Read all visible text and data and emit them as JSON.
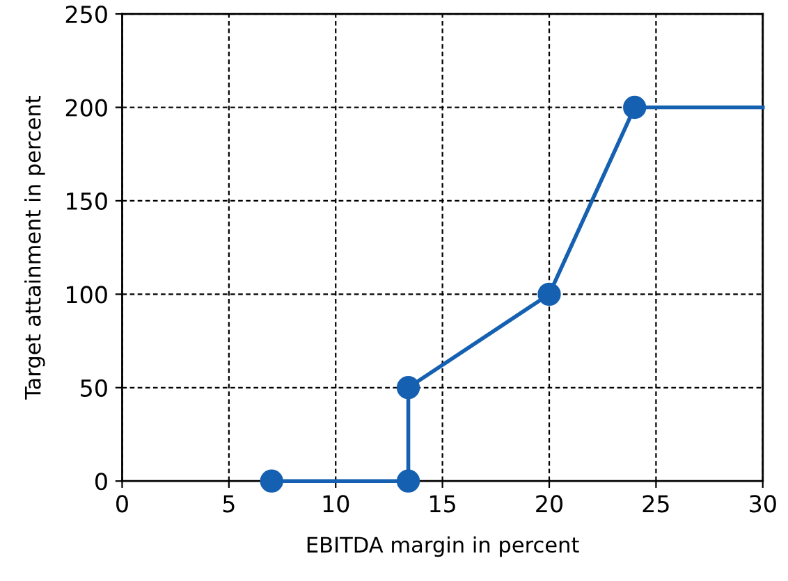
{
  "chart_data": {
    "type": "line",
    "xlabel": "EBITDA margin in percent",
    "ylabel": "Target attainment in percent",
    "series": [
      {
        "color": "#1560b0",
        "x": [
          7,
          13.4,
          13.4,
          20,
          24
        ],
        "values": [
          0,
          0,
          50,
          100,
          200
        ],
        "marker": "circle"
      },
      {
        "color": "#1560b0",
        "x": [
          24,
          30
        ],
        "values": [
          200,
          200
        ],
        "marker": "none"
      }
    ],
    "xlim": [
      0,
      30
    ],
    "ylim": [
      0,
      250
    ],
    "xticks": [
      0,
      5,
      10,
      15,
      20,
      25,
      30
    ],
    "yticks": [
      0,
      50,
      100,
      150,
      200,
      250
    ],
    "grid": true,
    "line_style": "solid"
  }
}
